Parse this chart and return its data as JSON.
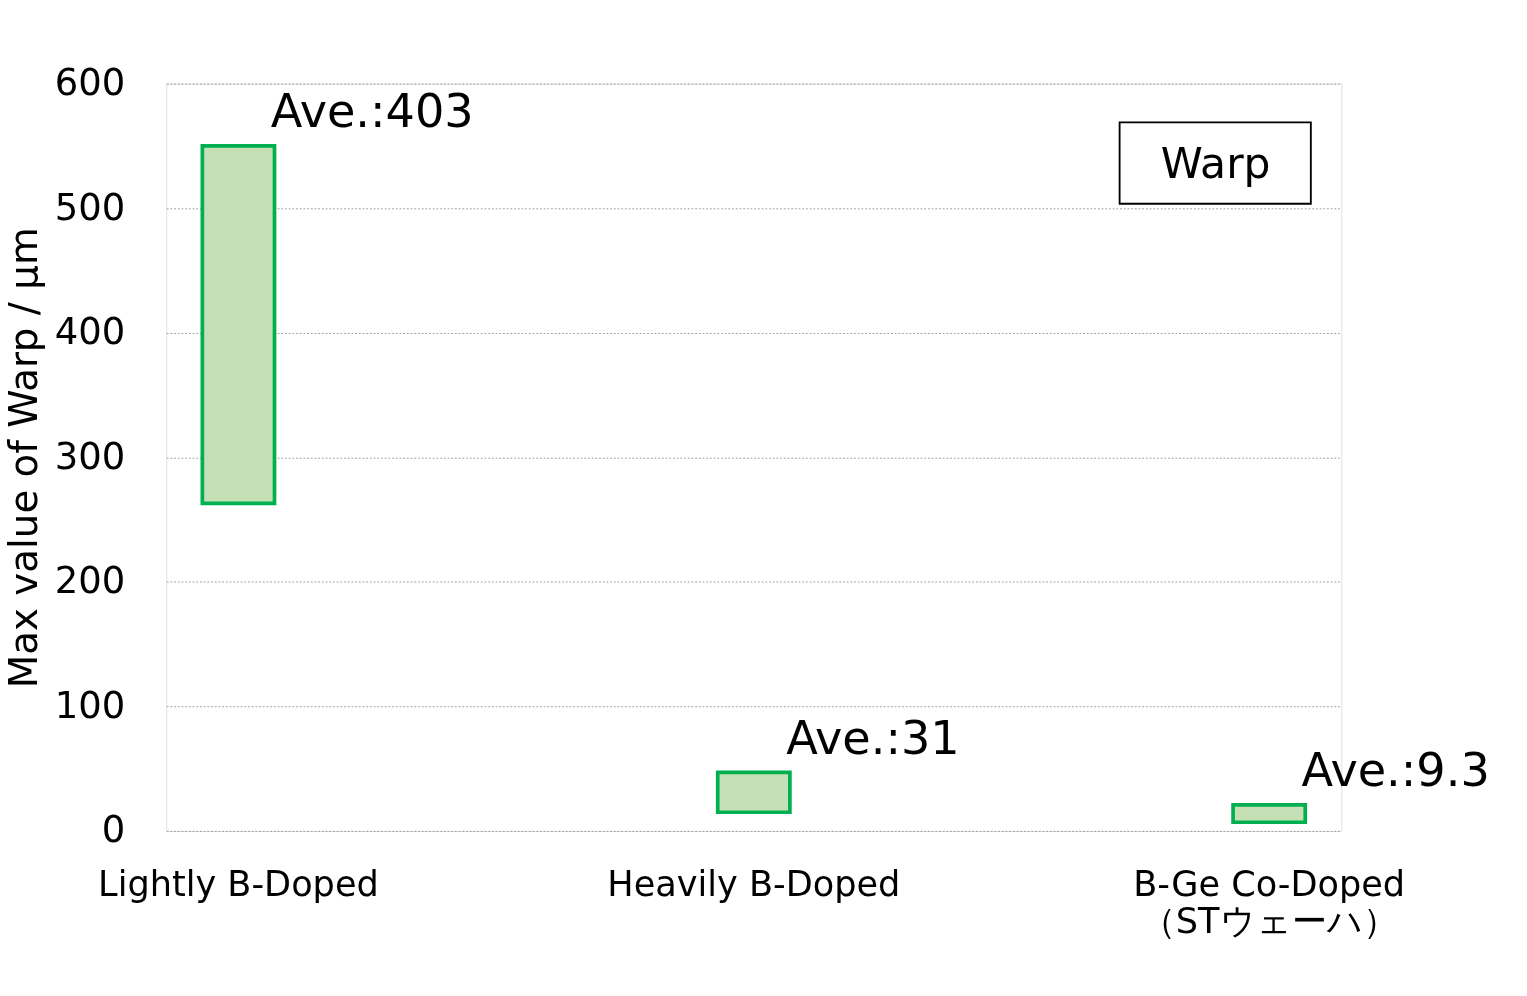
{
  "chart_data": {
    "type": "bar",
    "ylabel": "Max value of Warp / μm",
    "categories": [
      "Lightly B-Doped",
      "Heavily B-Doped",
      "B-Ge Co-Doped\n（STウェーハ）"
    ],
    "base": [
      263,
      15,
      7
    ],
    "values": [
      287,
      32,
      14
    ],
    "color": "#c5e0b4",
    "ylim": [
      0,
      600
    ],
    "yticks": [
      0,
      100,
      200,
      300,
      400,
      500,
      600
    ],
    "grid": "y",
    "annotations": [
      "Ave.:403",
      "Ave.:31",
      "Ave.:9.3",
      "Warp"
    ]
  }
}
